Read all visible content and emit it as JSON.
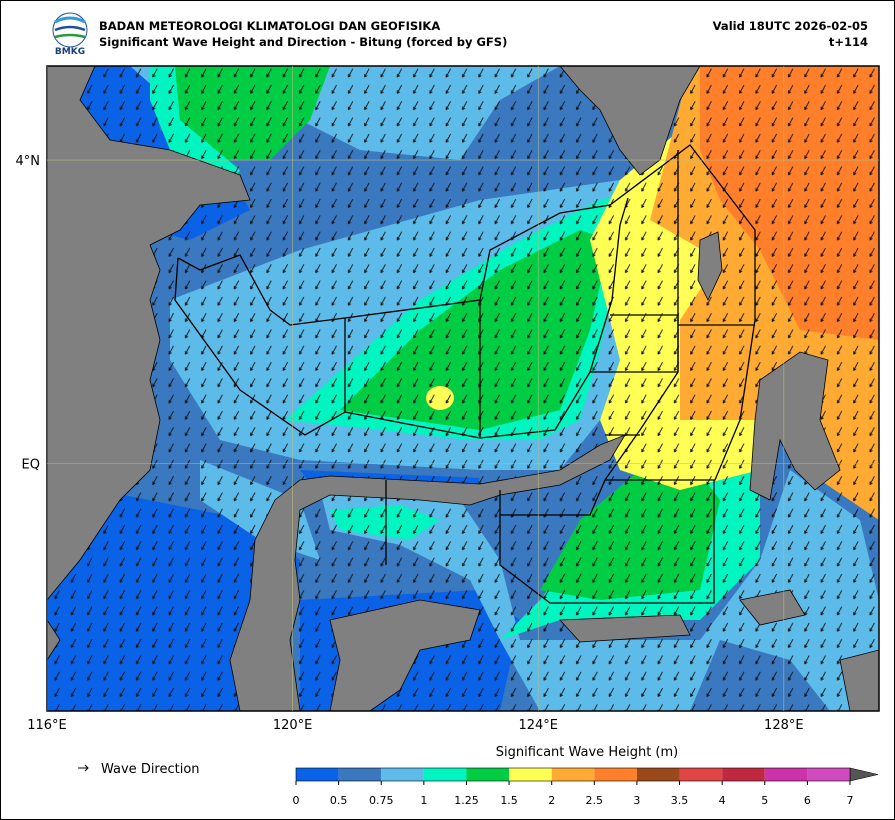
{
  "header": {
    "agency": "BADAN METEOROLOGI KLIMATOLOGI DAN GEOFISIKA",
    "title": "Significant Wave Height and Direction - Bitung (forced by GFS)",
    "valid": "Valid 18UTC 2026-02-05",
    "lead": "t+114",
    "logo": "BMKG"
  },
  "map": {
    "xlim": [
      116,
      129.55
    ],
    "ylim": [
      -3.26,
      5.24
    ],
    "xticks": [
      {
        "value": 116,
        "label": "116°E"
      },
      {
        "value": 120,
        "label": "120°E"
      },
      {
        "value": 124,
        "label": "124°E"
      },
      {
        "value": 128,
        "label": "128°E"
      }
    ],
    "yticks": [
      {
        "value": 4,
        "label": "4°N"
      },
      {
        "value": 0,
        "label": "EQ"
      }
    ]
  },
  "legend": {
    "label": "Wave Direction"
  },
  "colorbar": {
    "title": "Significant Wave Height (m)",
    "ticks": [
      0,
      0.5,
      0.75,
      1,
      1.25,
      1.5,
      2,
      2.5,
      3,
      3.5,
      4,
      5,
      6,
      7
    ],
    "colors": [
      "#0a62e6",
      "#3a78bf",
      "#5cbbe8",
      "#00f5c0",
      "#00cc44",
      "#ffff55",
      "#ffaa33",
      "#ff7f2a",
      "#9a4a1a",
      "#e04545",
      "#c02840",
      "#cc33aa",
      "#d04ac0"
    ]
  }
}
